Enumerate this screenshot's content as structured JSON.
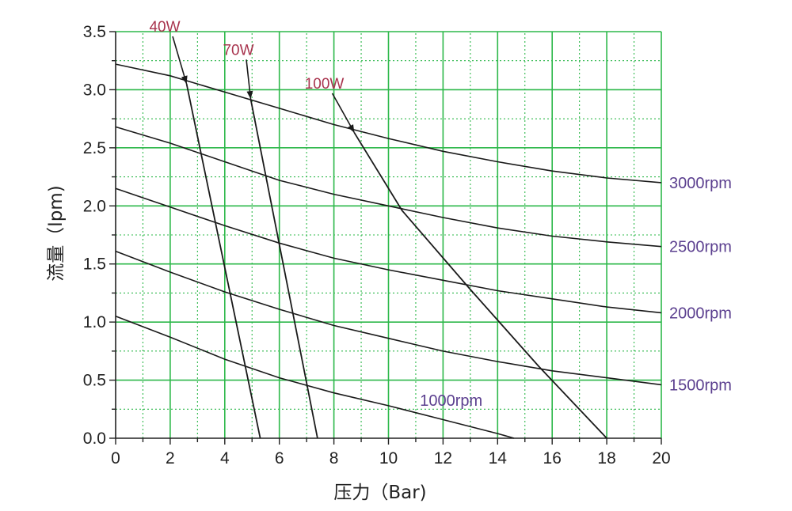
{
  "chart_data": {
    "type": "line",
    "title": "",
    "xlabel": "压力（Bar)",
    "ylabel": "流量（lpm)",
    "xlim": [
      0,
      20
    ],
    "ylim": [
      0,
      3.5
    ],
    "x_ticks": [
      "0",
      "2",
      "4",
      "6",
      "8",
      "10",
      "12",
      "14",
      "16",
      "18",
      "20"
    ],
    "y_ticks": [
      "0.0",
      "0.5",
      "1.0",
      "1.5",
      "2.0",
      "2.5",
      "3.0",
      "3.5"
    ],
    "grid": true,
    "grid_color": "#2db84a",
    "label_color_rpm": "#5b3f8f",
    "label_color_power": "#a8344e",
    "series": [
      {
        "name": "3000rpm",
        "x": [
          0,
          2,
          4,
          6,
          8,
          10,
          12,
          14,
          16,
          18,
          20
        ],
        "y": [
          3.22,
          3.12,
          2.98,
          2.84,
          2.7,
          2.58,
          2.47,
          2.38,
          2.3,
          2.24,
          2.2
        ]
      },
      {
        "name": "2500rpm",
        "x": [
          0,
          2,
          4,
          6,
          8,
          10,
          12,
          14,
          16,
          18,
          20
        ],
        "y": [
          2.68,
          2.54,
          2.38,
          2.22,
          2.1,
          2.0,
          1.9,
          1.81,
          1.74,
          1.69,
          1.65
        ]
      },
      {
        "name": "2000rpm",
        "x": [
          0,
          2,
          4,
          6,
          8,
          10,
          12,
          14,
          16,
          18,
          20
        ],
        "y": [
          2.15,
          1.99,
          1.83,
          1.68,
          1.55,
          1.45,
          1.36,
          1.27,
          1.2,
          1.13,
          1.08
        ]
      },
      {
        "name": "1500rpm",
        "x": [
          0,
          2,
          4,
          6,
          8,
          10,
          12,
          14,
          16,
          18,
          20
        ],
        "y": [
          1.61,
          1.43,
          1.26,
          1.11,
          0.97,
          0.86,
          0.75,
          0.66,
          0.58,
          0.52,
          0.46
        ]
      },
      {
        "name": "1000rpm",
        "x": [
          0,
          2,
          4,
          6,
          8,
          10,
          12,
          14,
          14.6
        ],
        "y": [
          1.05,
          0.87,
          0.68,
          0.52,
          0.39,
          0.28,
          0.16,
          0.04,
          0.0
        ]
      }
    ],
    "power_lines": [
      {
        "name": "40W",
        "x": [
          2.6,
          5.3
        ],
        "y": [
          3.05,
          0.0
        ]
      },
      {
        "name": "70W",
        "x": [
          4.95,
          7.4
        ],
        "y": [
          2.92,
          0.0
        ]
      },
      {
        "name": "100W",
        "x": [
          8.75,
          10.5,
          13.0,
          15.5,
          18.0
        ],
        "y": [
          2.63,
          1.96,
          1.28,
          0.62,
          0.0
        ]
      }
    ]
  }
}
